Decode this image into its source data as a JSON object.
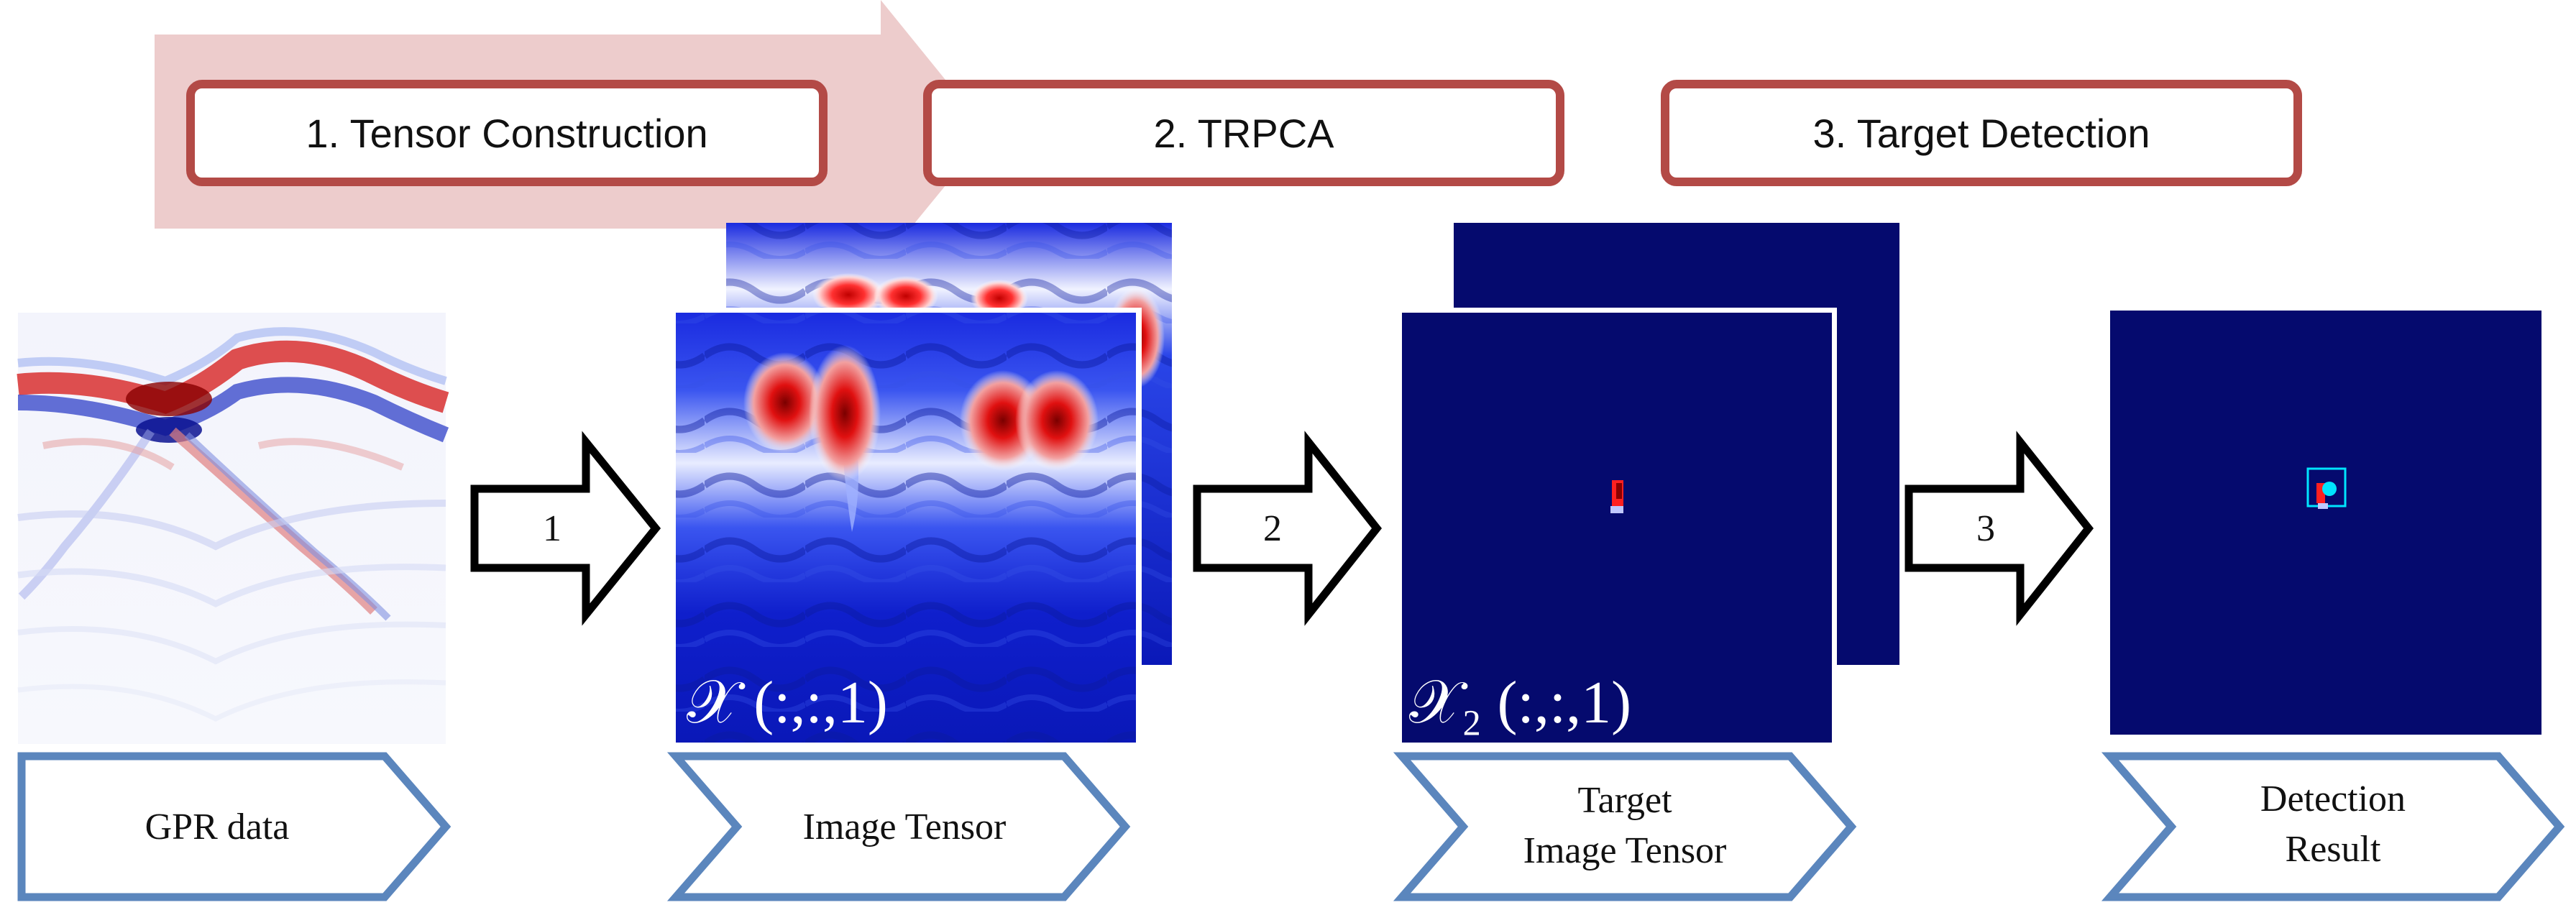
{
  "colors": {
    "banner_arrow": "#ecc9c9",
    "step_box_border": "#b34a46",
    "label_border": "#5b86bd",
    "tensor_dark_blue": "#050a6e",
    "heatmap_red": "#d21e1e",
    "heatmap_blue": "#1e2fd7",
    "detection_cyan": "#00e5ff"
  },
  "steps": [
    {
      "label": "1. Tensor Construction"
    },
    {
      "label": "2. TRPCA"
    },
    {
      "label": "3. Target Detection"
    }
  ],
  "flow_arrows": [
    {
      "label": "1"
    },
    {
      "label": "2"
    },
    {
      "label": "3"
    }
  ],
  "stages": [
    {
      "label_lines": [
        "GPR data"
      ],
      "icon": "gpr-bscan-image"
    },
    {
      "label_lines": [
        "Image Tensor"
      ],
      "icon": "image-tensor-stack",
      "math": "𝒳 (:,:,1)"
    },
    {
      "label_lines": [
        "Target",
        "Image Tensor"
      ],
      "icon": "target-tensor-stack",
      "math": "𝒳₂ (:,:,1)"
    },
    {
      "label_lines": [
        "Detection",
        "Result"
      ],
      "icon": "detection-result-image"
    }
  ]
}
